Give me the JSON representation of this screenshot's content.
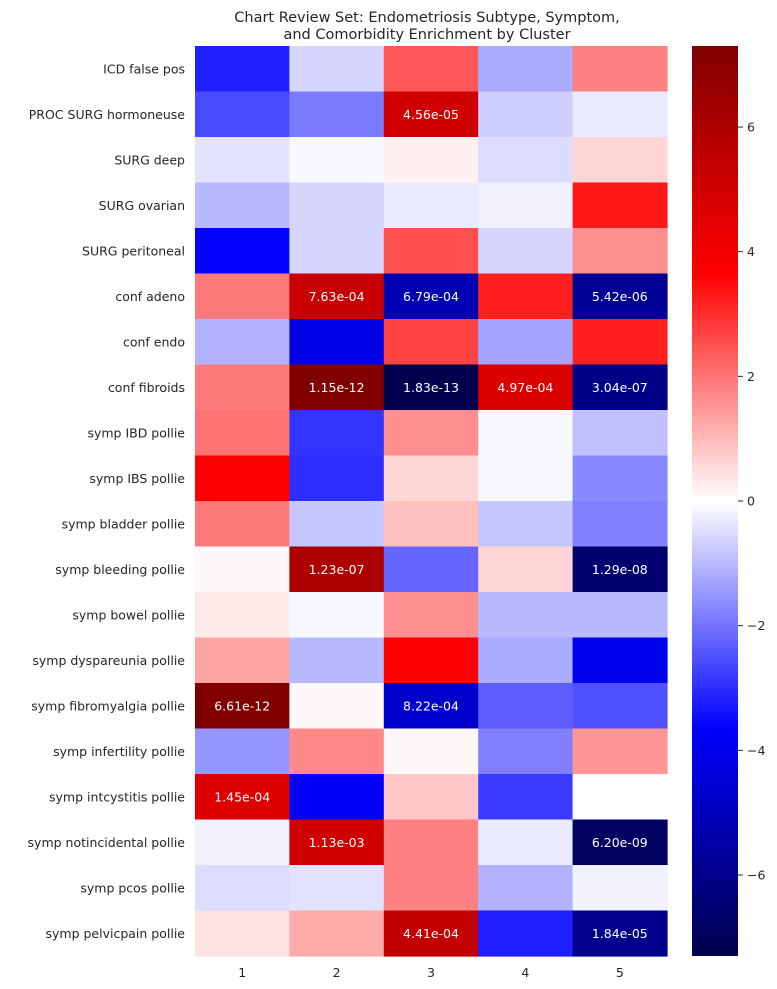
{
  "chart_data": {
    "type": "heatmap",
    "title": "Chart Review Set: Endometriosis Subtype, Symptom,",
    "title_line2": "and Comorbidity Enrichment by Cluster",
    "xlabel": "",
    "ylabel": "",
    "x": [
      "1",
      "2",
      "3",
      "4",
      "5"
    ],
    "rows": [
      "ICD false pos",
      "PROC SURG hormoneuse",
      "SURG deep",
      "SURG ovarian",
      "SURG peritoneal",
      "conf adeno",
      "conf endo",
      "conf fibroids",
      "symp IBD pollie",
      "symp IBS pollie",
      "symp bladder pollie",
      "symp bleeding pollie",
      "symp bowel pollie",
      "symp dyspareunia pollie",
      "symp fibromyalgia pollie",
      "symp infertility pollie",
      "symp intcystitis pollie",
      "symp notincidental pollie",
      "symp pcos pollie",
      "symp pelvicpain pollie"
    ],
    "values": [
      [
        -3.2,
        -0.6,
        2.4,
        -1.2,
        1.8
      ],
      [
        -2.6,
        -1.9,
        5.0,
        -0.7,
        -0.3
      ],
      [
        -0.4,
        -0.1,
        0.2,
        -0.5,
        0.6
      ],
      [
        -1.0,
        -0.6,
        -0.3,
        -0.2,
        3.3
      ],
      [
        -3.6,
        -0.6,
        2.5,
        -0.6,
        1.6
      ],
      [
        1.9,
        5.2,
        -5.2,
        3.2,
        -5.8
      ],
      [
        -1.1,
        -4.2,
        2.7,
        -1.3,
        3.2
      ],
      [
        1.9,
        7.3,
        -7.3,
        4.7,
        -6.1
      ],
      [
        2.0,
        -2.9,
        1.6,
        -0.1,
        -0.9
      ],
      [
        3.7,
        -3.0,
        0.6,
        -0.1,
        -1.7
      ],
      [
        1.9,
        -0.8,
        0.9,
        -0.8,
        -1.8
      ],
      [
        0.1,
        6.0,
        -2.2,
        0.6,
        -6.6
      ],
      [
        0.3,
        -0.1,
        1.6,
        -1.0,
        -1.0
      ],
      [
        1.3,
        -1.0,
        3.7,
        -1.2,
        -4.0
      ],
      [
        7.3,
        0.1,
        -4.7,
        -2.3,
        -2.5
      ],
      [
        -1.5,
        1.7,
        0.1,
        -1.8,
        1.5
      ],
      [
        4.6,
        -3.8,
        0.8,
        -2.8,
        0.0
      ],
      [
        -0.2,
        5.0,
        1.8,
        -0.3,
        -6.9
      ],
      [
        -0.5,
        -0.4,
        1.8,
        -1.1,
        -0.2
      ],
      [
        0.4,
        1.2,
        5.4,
        -3.2,
        -6.0
      ]
    ],
    "annotations": [
      [
        "",
        "",
        "",
        "",
        ""
      ],
      [
        "",
        "",
        "4.56e-05",
        "",
        ""
      ],
      [
        "",
        "",
        "",
        "",
        ""
      ],
      [
        "",
        "",
        "",
        "",
        ""
      ],
      [
        "",
        "",
        "",
        "",
        ""
      ],
      [
        "",
        "7.63e-04",
        "6.79e-04",
        "",
        "5.42e-06"
      ],
      [
        "",
        "",
        "",
        "",
        ""
      ],
      [
        "",
        "1.15e-12",
        "1.83e-13",
        "4.97e-04",
        "3.04e-07"
      ],
      [
        "",
        "",
        "",
        "",
        ""
      ],
      [
        "",
        "",
        "",
        "",
        ""
      ],
      [
        "",
        "",
        "",
        "",
        ""
      ],
      [
        "",
        "1.23e-07",
        "",
        "",
        "1.29e-08"
      ],
      [
        "",
        "",
        "",
        "",
        ""
      ],
      [
        "",
        "",
        "",
        "",
        ""
      ],
      [
        "6.61e-12",
        "",
        "8.22e-04",
        "",
        ""
      ],
      [
        "",
        "",
        "",
        "",
        ""
      ],
      [
        "1.45e-04",
        "",
        "",
        "",
        ""
      ],
      [
        "",
        "1.13e-03",
        "",
        "",
        "6.20e-09"
      ],
      [
        "",
        "",
        "",
        "",
        ""
      ],
      [
        "",
        "",
        "4.41e-04",
        "",
        "1.84e-05"
      ]
    ],
    "colormap": "seismic",
    "vmin": -7.3,
    "vmax": 7.3,
    "colorbar_ticks": [
      6,
      4,
      2,
      0,
      -2,
      -4,
      -6
    ],
    "colorbar_labels": [
      "6",
      "4",
      "2",
      "0",
      "−2",
      "−4",
      "−6"
    ]
  }
}
